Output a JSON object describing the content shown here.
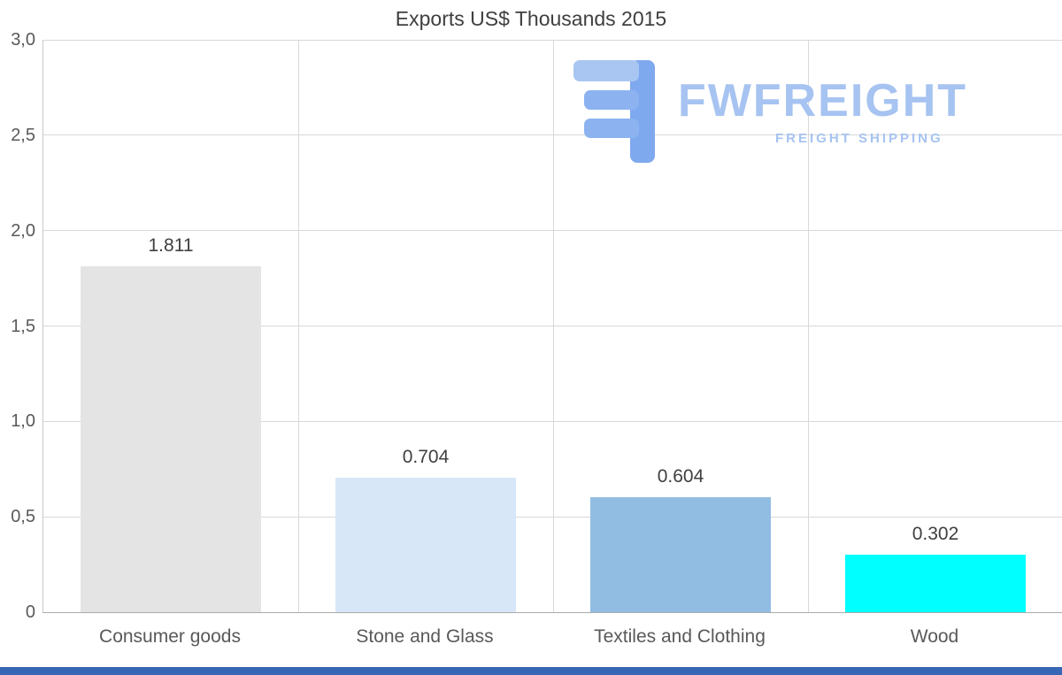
{
  "chart_data": {
    "type": "bar",
    "title": "Exports US$ Thousands 2015",
    "categories": [
      "Consumer goods",
      "Stone and Glass",
      "Textiles and Clothing",
      "Wood"
    ],
    "values": [
      1.811,
      0.704,
      0.604,
      0.302
    ],
    "value_labels": [
      "1.811",
      "0.704",
      "0.604",
      "0.302"
    ],
    "bar_colors": [
      "#e4e4e4",
      "#d7e7f8",
      "#92bde3",
      "#00ffff"
    ],
    "xlabel": "",
    "ylabel": "",
    "ylim": [
      0,
      3
    ],
    "y_ticks": [
      0,
      0.5,
      1.0,
      1.5,
      2.0,
      2.5,
      3.0
    ],
    "y_tick_labels": [
      "0",
      "0,5",
      "1,0",
      "1,5",
      "2,0",
      "2,5",
      "3,0"
    ],
    "grid": true,
    "legend": "none"
  },
  "logo": {
    "brand": "FWFREIGHT",
    "tagline": "FREIGHT SHIPPING",
    "text_color": "#a6c3f1",
    "icon_color": "#7fa9ee"
  },
  "colors": {
    "title_text": "#3f3f3f",
    "axis_text": "#595959",
    "value_text": "#404040",
    "gridline": "#d9d9d9",
    "footer_strip": "#3766b4",
    "background": "#ffffff"
  }
}
